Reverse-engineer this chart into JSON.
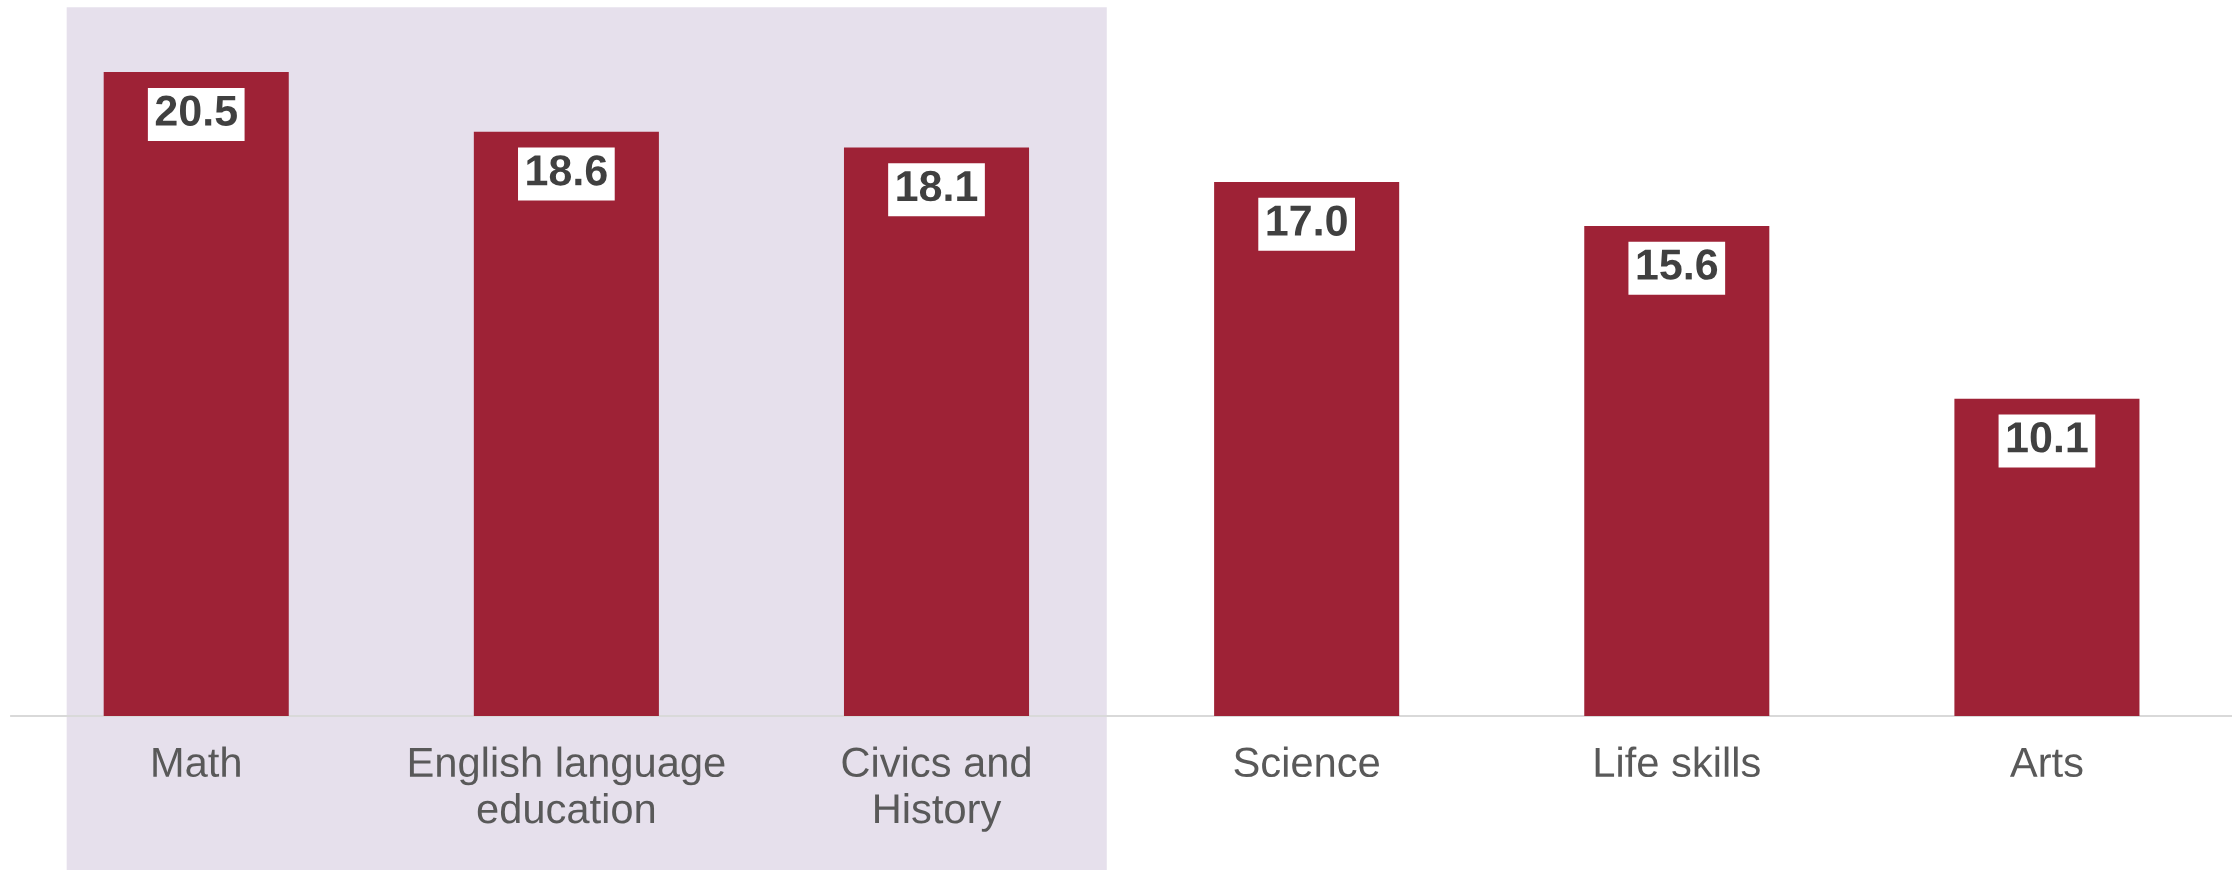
{
  "chart_data": {
    "type": "bar",
    "categories": [
      "Math",
      "English language\neducation",
      "Civics and\nHistory",
      "Science",
      "Life skills",
      "Arts"
    ],
    "values": [
      20.5,
      18.6,
      18.1,
      17.0,
      15.6,
      10.1
    ],
    "color": "#9e2236",
    "value_labels": [
      "20.5",
      "18.6",
      "18.1",
      "17.0",
      "15.6",
      "10.1"
    ],
    "tick_labels": "x",
    "grid": false,
    "legend": false,
    "bands": [
      {
        "axis": "x",
        "from": "Math",
        "to": "Civics and\nHistory",
        "color": "#e6e0ec"
      }
    ]
  }
}
